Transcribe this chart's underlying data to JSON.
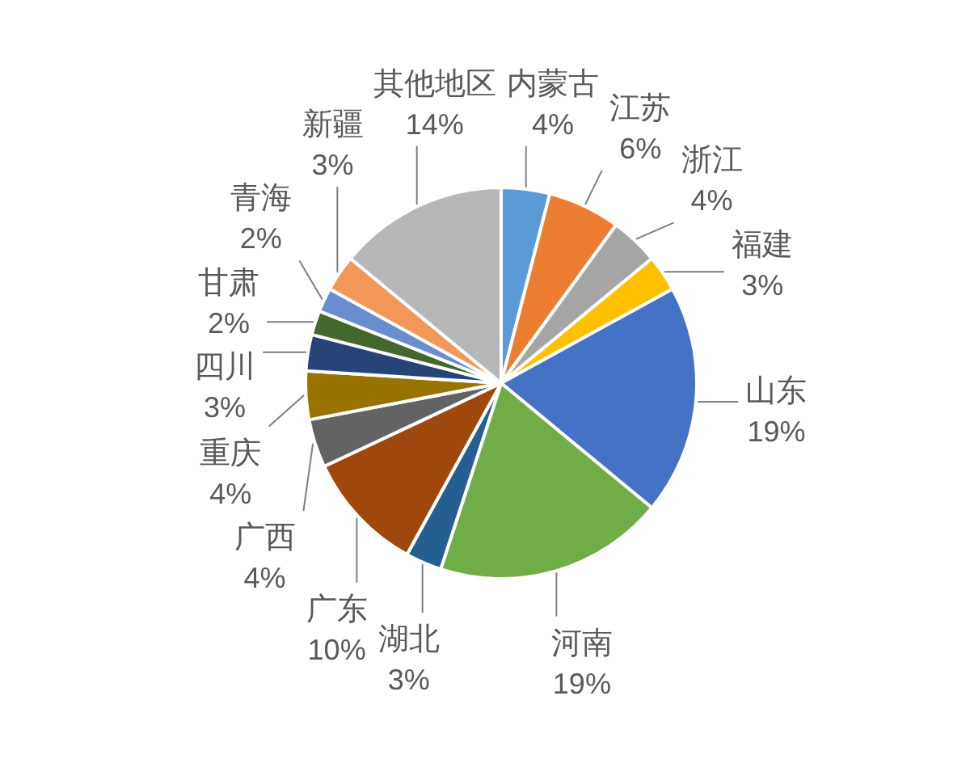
{
  "chart_data": {
    "type": "pie",
    "categories": [
      "内蒙古",
      "江苏",
      "浙江",
      "福建",
      "山东",
      "河南",
      "湖北",
      "广东",
      "广西",
      "重庆",
      "四川",
      "甘肃",
      "青海",
      "新疆",
      "其他地区"
    ],
    "values": [
      4,
      6,
      4,
      3,
      19,
      19,
      3,
      10,
      4,
      4,
      3,
      2,
      2,
      3,
      14
    ],
    "value_labels": [
      "4%",
      "6%",
      "4%",
      "3%",
      "19%",
      "19%",
      "3%",
      "10%",
      "4%",
      "4%",
      "3%",
      "2%",
      "2%",
      "3%",
      "14%"
    ],
    "colors": [
      "#5b9bd5",
      "#ed7d31",
      "#a5a5a5",
      "#ffc000",
      "#4472c4",
      "#70ad47",
      "#255e91",
      "#9e480e",
      "#636363",
      "#997300",
      "#264478",
      "#43682b",
      "#698ed0",
      "#f1975a",
      "#b7b7b7"
    ],
    "legend": false
  }
}
